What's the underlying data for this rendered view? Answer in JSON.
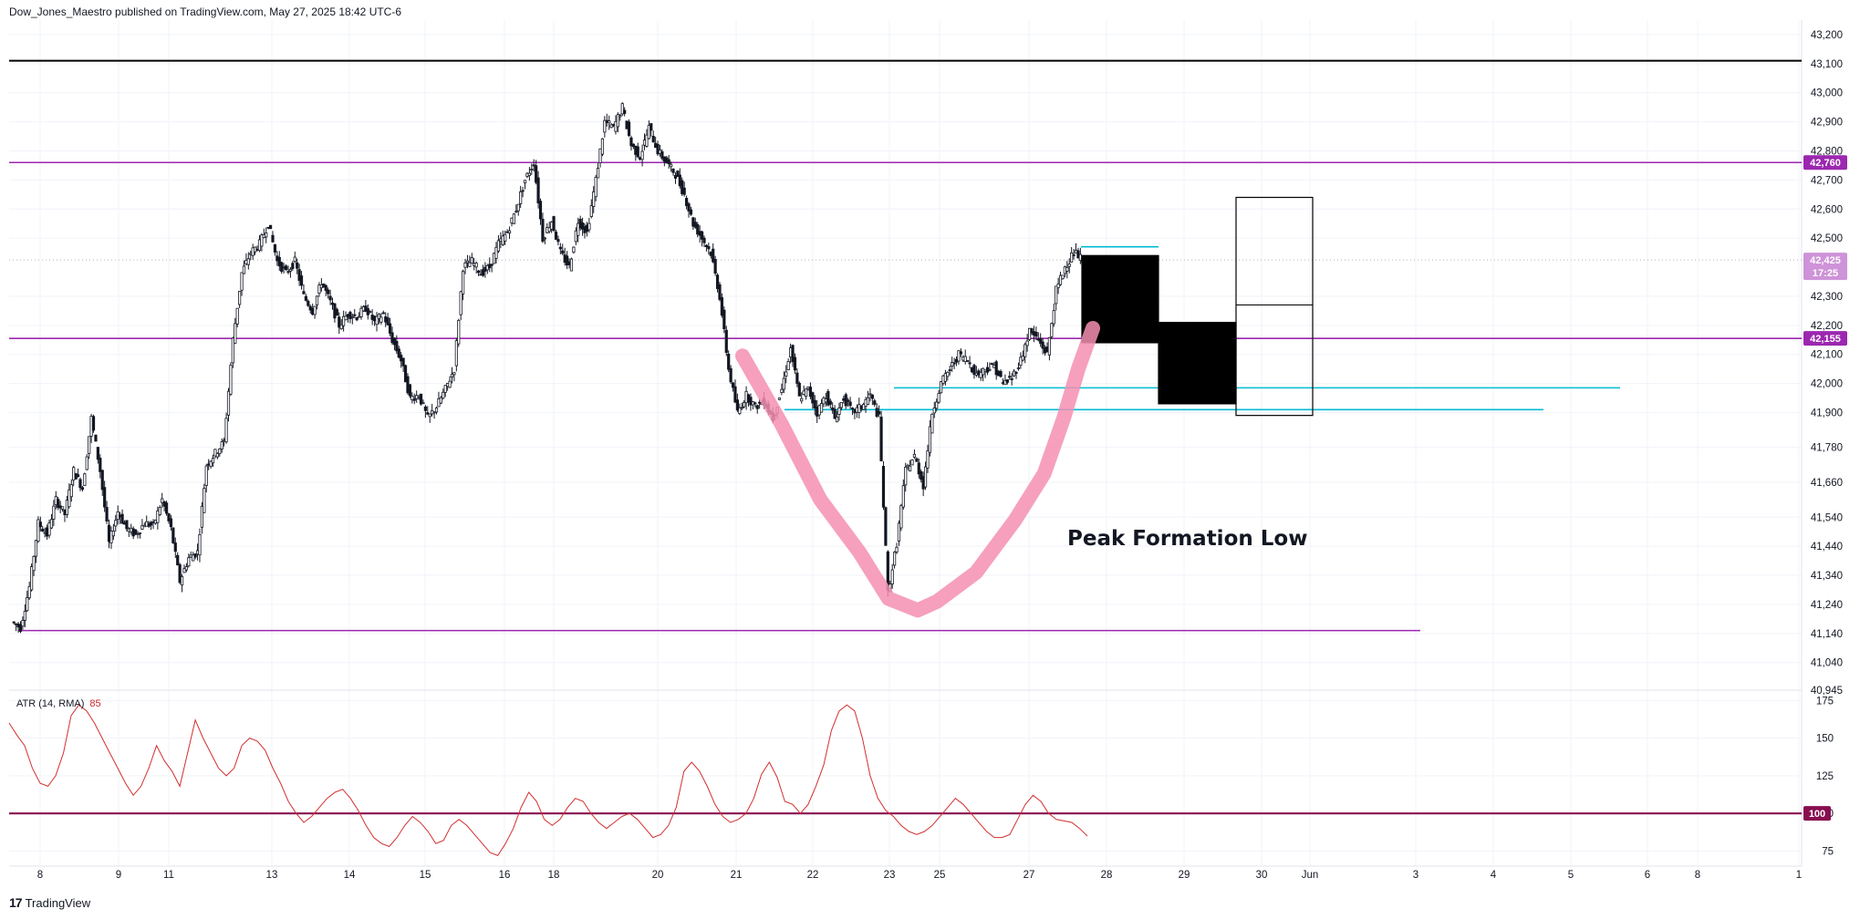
{
  "header": {
    "publisher": "Dow_Jones_Maestro published on TradingView.com, May 27, 2025 18:42 UTC-6"
  },
  "footer": {
    "brand": "TradingView",
    "logo_mark": "17"
  },
  "annotation": {
    "text": "Peak Formation Low"
  },
  "colors": {
    "purple": "#9c27b0",
    "cyan": "#00bcd4",
    "pink": "#f48fb1",
    "atr_line": "#d32f2f",
    "atr_level": "#880e4f",
    "black": "#000000"
  },
  "chart_data": [
    {
      "type": "candlestick",
      "title": "",
      "ylim": [
        40945,
        43250
      ],
      "price_axis_ticks": [
        "43,200",
        "43,100",
        "43,000",
        "42,900",
        "42,800",
        "42,700",
        "42,600",
        "42,500",
        "42,300",
        "42,200",
        "42,100",
        "42,000",
        "41,900",
        "41,780",
        "41,660",
        "41,540",
        "41,440",
        "41,340",
        "41,240",
        "41,140",
        "41,040",
        "40,945"
      ],
      "time_axis_ticks": [
        "8",
        "9",
        "11",
        "13",
        "14",
        "15",
        "16",
        "18",
        "20",
        "21",
        "22",
        "23",
        "25",
        "27",
        "28",
        "29",
        "30",
        "Jun",
        "3",
        "4",
        "5",
        "6",
        "8",
        "1"
      ],
      "price_badges": [
        {
          "label": "42,760",
          "value": 42760,
          "color": "#9c27b0"
        },
        {
          "label": "42,425",
          "sublabel": "17:25",
          "value": 42425,
          "color": "#ce93d8"
        },
        {
          "label": "42,155",
          "value": 42155,
          "color": "#9c27b0"
        }
      ],
      "horizontal_levels": [
        {
          "value": 43110,
          "color": "#000000"
        },
        {
          "value": 42760,
          "color": "#9c27b0"
        },
        {
          "value": 42155,
          "color": "#9c27b0"
        },
        {
          "value": 41150,
          "color": "#9c27b0"
        },
        {
          "value": 41985,
          "color": "#00bcd4"
        },
        {
          "value": 41910,
          "color": "#00bcd4"
        },
        {
          "value": 42470,
          "color": "#00bcd4"
        }
      ],
      "projection_boxes": [
        {
          "top": 42440,
          "bottom": 42140,
          "fill": "#000000"
        },
        {
          "top": 42210,
          "bottom": 41930,
          "fill": "#000000"
        },
        {
          "top": 42640,
          "bottom": 41890,
          "mid": 42270,
          "fill": "none"
        }
      ],
      "price_path": [
        [
          0,
          41180
        ],
        [
          1,
          41160
        ],
        [
          2,
          41300
        ],
        [
          3,
          41520
        ],
        [
          4,
          41480
        ],
        [
          5,
          41600
        ],
        [
          6,
          41550
        ],
        [
          7,
          41700
        ],
        [
          8,
          41640
        ],
        [
          9,
          41880
        ],
        [
          10,
          41700
        ],
        [
          11,
          41450
        ],
        [
          12,
          41560
        ],
        [
          13,
          41500
        ],
        [
          14,
          41480
        ],
        [
          15,
          41520
        ],
        [
          16,
          41510
        ],
        [
          17,
          41600
        ],
        [
          18,
          41500
        ],
        [
          19,
          41320
        ],
        [
          20,
          41400
        ],
        [
          21,
          41420
        ],
        [
          22,
          41720
        ],
        [
          23,
          41760
        ],
        [
          24,
          41800
        ],
        [
          25,
          42150
        ],
        [
          26,
          42380
        ],
        [
          27,
          42450
        ],
        [
          28,
          42480
        ],
        [
          29,
          42550
        ],
        [
          30,
          42420
        ],
        [
          31,
          42380
        ],
        [
          32,
          42420
        ],
        [
          33,
          42300
        ],
        [
          34,
          42250
        ],
        [
          35,
          42350
        ],
        [
          36,
          42280
        ],
        [
          37,
          42200
        ],
        [
          38,
          42240
        ],
        [
          39,
          42230
        ],
        [
          40,
          42260
        ],
        [
          41,
          42210
        ],
        [
          42,
          42240
        ],
        [
          43,
          42150
        ],
        [
          44,
          42080
        ],
        [
          45,
          41950
        ],
        [
          46,
          41960
        ],
        [
          47,
          41880
        ],
        [
          48,
          41920
        ],
        [
          49,
          41980
        ],
        [
          50,
          42050
        ],
        [
          51,
          42400
        ],
        [
          52,
          42420
        ],
        [
          53,
          42380
        ],
        [
          54,
          42400
        ],
        [
          55,
          42480
        ],
        [
          56,
          42520
        ],
        [
          57,
          42600
        ],
        [
          58,
          42700
        ],
        [
          59,
          42760
        ],
        [
          60,
          42500
        ],
        [
          61,
          42560
        ],
        [
          62,
          42450
        ],
        [
          63,
          42400
        ],
        [
          64,
          42560
        ],
        [
          65,
          42520
        ],
        [
          66,
          42700
        ],
        [
          67,
          42900
        ],
        [
          68,
          42880
        ],
        [
          69,
          42950
        ],
        [
          70,
          42820
        ],
        [
          71,
          42780
        ],
        [
          72,
          42880
        ],
        [
          73,
          42800
        ],
        [
          74,
          42760
        ],
        [
          75,
          42720
        ],
        [
          76,
          42650
        ],
        [
          77,
          42550
        ],
        [
          78,
          42500
        ],
        [
          79,
          42450
        ],
        [
          80,
          42300
        ],
        [
          81,
          42050
        ],
        [
          82,
          41900
        ],
        [
          83,
          41960
        ],
        [
          84,
          41920
        ],
        [
          85,
          41940
        ],
        [
          86,
          41880
        ],
        [
          87,
          41980
        ],
        [
          88,
          42120
        ],
        [
          89,
          41950
        ],
        [
          90,
          41980
        ],
        [
          91,
          41900
        ],
        [
          92,
          41960
        ],
        [
          93,
          41880
        ],
        [
          94,
          41950
        ],
        [
          95,
          41900
        ],
        [
          96,
          41920
        ],
        [
          97,
          41960
        ],
        [
          98,
          41880
        ],
        [
          99,
          41280
        ],
        [
          100,
          41450
        ],
        [
          101,
          41700
        ],
        [
          102,
          41750
        ],
        [
          103,
          41650
        ],
        [
          104,
          41900
        ],
        [
          105,
          42000
        ],
        [
          106,
          42050
        ],
        [
          107,
          42100
        ],
        [
          108,
          42080
        ],
        [
          109,
          42030
        ],
        [
          110,
          42050
        ],
        [
          111,
          42060
        ],
        [
          112,
          42000
        ],
        [
          113,
          42020
        ],
        [
          114,
          42080
        ],
        [
          115,
          42180
        ],
        [
          116,
          42150
        ],
        [
          117,
          42100
        ],
        [
          118,
          42320
        ],
        [
          119,
          42400
        ],
        [
          120,
          42450
        ],
        [
          121,
          42425
        ]
      ],
      "pink_curve": [
        [
          0,
          42095
        ],
        [
          8,
          41860
        ],
        [
          16,
          41600
        ],
        [
          24,
          41420
        ],
        [
          30,
          41260
        ],
        [
          36,
          41220
        ],
        [
          40,
          41250
        ],
        [
          48,
          41350
        ],
        [
          56,
          41530
        ],
        [
          62,
          41690
        ],
        [
          66,
          41880
        ],
        [
          69,
          42050
        ],
        [
          72,
          42190
        ]
      ]
    },
    {
      "type": "line",
      "title": "ATR (14, RMA)",
      "last_value": "85",
      "ylim": [
        65,
        180
      ],
      "y_ticks": [
        "175",
        "150",
        "125",
        "100",
        "75"
      ],
      "level": {
        "label": "100",
        "value": 100,
        "color": "#880e4f"
      },
      "values": [
        160,
        152,
        145,
        130,
        120,
        118,
        125,
        140,
        165,
        172,
        168,
        160,
        150,
        140,
        130,
        120,
        112,
        118,
        130,
        145,
        135,
        128,
        118,
        140,
        162,
        150,
        140,
        130,
        125,
        130,
        145,
        150,
        148,
        142,
        130,
        120,
        108,
        100,
        94,
        98,
        104,
        110,
        114,
        116,
        110,
        102,
        92,
        84,
        80,
        78,
        84,
        92,
        98,
        94,
        88,
        80,
        82,
        92,
        96,
        92,
        86,
        80,
        74,
        72,
        80,
        90,
        104,
        114,
        108,
        96,
        92,
        96,
        104,
        110,
        108,
        100,
        94,
        90,
        94,
        98,
        100,
        96,
        90,
        84,
        86,
        92,
        104,
        128,
        134,
        128,
        118,
        106,
        98,
        94,
        96,
        100,
        110,
        126,
        134,
        124,
        108,
        106,
        100,
        106,
        118,
        132,
        155,
        168,
        172,
        168,
        150,
        125,
        110,
        102,
        98,
        92,
        88,
        86,
        88,
        92,
        98,
        104,
        110,
        106,
        100,
        94,
        88,
        84,
        84,
        86,
        96,
        106,
        112,
        108,
        100,
        96,
        95,
        94,
        90,
        85
      ]
    }
  ]
}
